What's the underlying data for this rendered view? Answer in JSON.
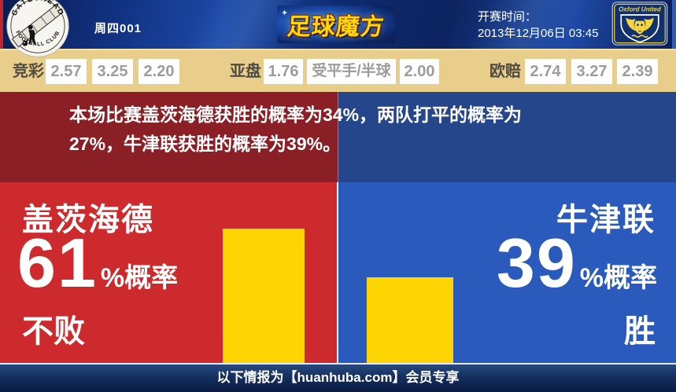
{
  "header": {
    "match_code": "周四001",
    "kickoff_label": "开赛时间：",
    "kickoff_time": "2013年12月06日 03:45",
    "brand_text": "足球魔方",
    "sparkle_icon": "✦",
    "home_badge": {
      "ring_text_top": "GATESHEAD",
      "ring_text_bottom": "FOOTBALL CLUB"
    },
    "away_badge": {
      "label": "Oxford United"
    }
  },
  "odds": {
    "jingcai": {
      "label": "竞彩",
      "win": "2.57",
      "draw": "3.25",
      "lose": "2.20"
    },
    "yapan": {
      "label": "亚盘",
      "home": "1.76",
      "handicap": "受平手/半球",
      "away": "2.00"
    },
    "oupei": {
      "label": "欧赔",
      "win": "2.74",
      "draw": "3.27",
      "lose": "2.39"
    }
  },
  "prediction": {
    "line1": "本场比赛盖茨海德获胜的概率为34%，两队打平的概率为",
    "line2": "27%，牛津联获胜的概率为39%。"
  },
  "panels": {
    "home": {
      "team": "盖茨海德",
      "probability": "61",
      "prob_suffix": "%概率",
      "outcome": "不败",
      "bar_value": 61
    },
    "away": {
      "team": "牛津联",
      "probability": "39",
      "prob_suffix": "%概率",
      "outcome": "胜",
      "bar_value": 39
    }
  },
  "footer": {
    "text": "以下情报为【huanhuba.com】会员专享"
  },
  "colors": {
    "panel_red": "#cd2a2e",
    "panel_blue": "#2b5abd",
    "band_red": "#8a2025",
    "band_blue": "#26468c",
    "bar_yellow": "#ffd403",
    "odds_tan": "#e9cd8a",
    "footer_navy": "#0d2452",
    "brand_yellow": "#ffd60a"
  }
}
